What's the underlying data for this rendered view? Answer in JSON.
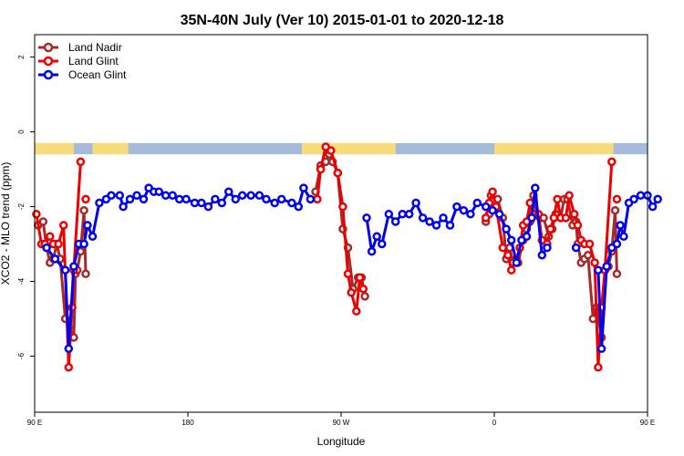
{
  "chart_data": {
    "type": "line",
    "title": "35N-40N July (Ver 10)   2015-01-01 to 2020-12-18",
    "xlabel": "Longitude",
    "ylabel": "XCO2 - MLO trend (ppm)",
    "xlim": [
      90,
      450
    ],
    "ylim": [
      -7.5,
      2.6
    ],
    "x_ticks": [
      {
        "value": 90,
        "label": "90 E"
      },
      {
        "value": 180,
        "label": "180"
      },
      {
        "value": 270,
        "label": "90 W"
      },
      {
        "value": 360,
        "label": "0"
      },
      {
        "value": 450,
        "label": "90 E"
      },
      {
        "value": 540,
        "label": "180"
      }
    ],
    "y_ticks": [
      {
        "value": -6,
        "label": "-6"
      },
      {
        "value": -4,
        "label": "-4"
      },
      {
        "value": -2,
        "label": "-2"
      },
      {
        "value": 0,
        "label": "0"
      },
      {
        "value": 2,
        "label": "2"
      }
    ],
    "grid": false,
    "legend_position": "top-left",
    "land_ocean_strip": {
      "y_range": [
        -0.6,
        -0.3
      ],
      "land_color": "#f9dc7a",
      "ocean_color": "#a4bcd9",
      "land_ranges": [
        [
          90,
          113
        ],
        [
          124,
          145
        ],
        [
          247,
          302
        ],
        [
          360,
          430
        ],
        [
          450,
          473
        ],
        [
          484,
          505
        ]
      ]
    },
    "series": [
      {
        "name": "Land Nadir",
        "color": "#a52a2a",
        "segments": [
          [
            [
              92,
              -2.5
            ],
            [
              95,
              -2.4
            ],
            [
              97,
              -3.1
            ],
            [
              99,
              -3.5
            ],
            [
              101,
              -3.4
            ],
            [
              103,
              -3.0
            ],
            [
              105,
              -3.4
            ],
            [
              108,
              -5.0
            ],
            [
              111,
              -5.3
            ],
            [
              113,
              -5.5
            ],
            [
              114,
              -3.8
            ],
            [
              115,
              -3.7
            ],
            [
              117,
              -3.2
            ],
            [
              119,
              -2.1
            ],
            [
              120,
              -3.8
            ]
          ],
          [
            [
              255,
              -1.6
            ],
            [
              258,
              -0.9
            ],
            [
              261,
              -0.8
            ],
            [
              263,
              -0.6
            ],
            [
              265,
              -0.8
            ],
            [
              268,
              -1.1
            ],
            [
              271,
              -2.6
            ],
            [
              274,
              -3.1
            ],
            [
              277,
              -4.2
            ],
            [
              280,
              -3.9
            ],
            [
              282,
              -3.9
            ],
            [
              284,
              -4.4
            ]
          ],
          [
            [
              355,
              -2.4
            ],
            [
              357,
              -2.2
            ],
            [
              358,
              -1.7
            ],
            [
              362,
              -1.8
            ],
            [
              365,
              -2.3
            ],
            [
              367,
              -3.4
            ],
            [
              369,
              -3.1
            ],
            [
              371,
              -3.5
            ],
            [
              374,
              -3.5
            ],
            [
              377,
              -2.9
            ],
            [
              379,
              -2.6
            ],
            [
              381,
              -2.4
            ],
            [
              383,
              -1.7
            ],
            [
              385,
              -2.2
            ],
            [
              387,
              -2.3
            ],
            [
              389,
              -2.3
            ],
            [
              392,
              -2.8
            ],
            [
              394,
              -2.6
            ],
            [
              396,
              -2.2
            ],
            [
              399,
              -2.3
            ],
            [
              401,
              -1.8
            ],
            [
              403,
              -1.8
            ],
            [
              406,
              -2.5
            ],
            [
              408,
              -2.4
            ],
            [
              409,
              -3.0
            ],
            [
              411,
              -3.5
            ],
            [
              413,
              -3.4
            ],
            [
              415,
              -3.3
            ],
            [
              418,
              -5.0
            ],
            [
              420,
              -4.7
            ],
            [
              423,
              -5.5
            ],
            [
              425,
              -3.7
            ],
            [
              427,
              -3.6
            ],
            [
              429,
              -3.2
            ],
            [
              431,
              -2.1
            ],
            [
              432,
              -3.8
            ]
          ]
        ]
      },
      {
        "name": "Land Glint",
        "color": "#ee0000",
        "segments": [
          [
            [
              91,
              -2.2
            ],
            [
              94,
              -3.0
            ],
            [
              96,
              -3.0
            ],
            [
              99,
              -2.8
            ],
            [
              101,
              -3.0
            ],
            [
              104,
              -3.0
            ],
            [
              107,
              -2.5
            ],
            [
              110,
              -6.3
            ],
            [
              112,
              -4.7
            ],
            [
              113,
              -3.7
            ],
            [
              117,
              -0.8
            ]
          ],
          [
            [
              120,
              -1.8
            ]
          ],
          [
            [
              256,
              -1.8
            ],
            [
              258,
              -1.0
            ],
            [
              261,
              -0.4
            ],
            [
              264,
              -0.5
            ],
            [
              268,
              -1.1
            ],
            [
              271,
              -2.0
            ],
            [
              274,
              -3.8
            ],
            [
              276,
              -4.3
            ],
            [
              279,
              -4.8
            ],
            [
              281,
              -3.9
            ],
            [
              283,
              -4.2
            ]
          ],
          [
            [
              355,
              -2.3
            ],
            [
              357,
              -1.9
            ],
            [
              359,
              -1.6
            ],
            [
              361,
              -2.0
            ],
            [
              365,
              -3.1
            ],
            [
              368,
              -3.3
            ],
            [
              370,
              -3.7
            ],
            [
              373,
              -3.4
            ],
            [
              375,
              -3.1
            ],
            [
              377,
              -2.5
            ],
            [
              379,
              -2.4
            ],
            [
              381,
              -1.9
            ],
            [
              383,
              -2.2
            ],
            [
              386,
              -2.2
            ],
            [
              388,
              -2.9
            ],
            [
              391,
              -3.0
            ],
            [
              393,
              -2.6
            ],
            [
              395,
              -2.3
            ],
            [
              397,
              -1.8
            ],
            [
              399,
              -2.3
            ],
            [
              402,
              -2.3
            ],
            [
              404,
              -1.7
            ],
            [
              407,
              -2.2
            ],
            [
              409,
              -2.5
            ],
            [
              411,
              -2.9
            ],
            [
              413,
              -3.0
            ],
            [
              416,
              -3.0
            ],
            [
              419,
              -3.5
            ],
            [
              421,
              -6.3
            ],
            [
              423,
              -4.7
            ],
            [
              425,
              -3.7
            ],
            [
              429,
              -0.8
            ]
          ],
          [
            [
              432,
              -1.8
            ]
          ]
        ]
      },
      {
        "name": "Ocean Glint",
        "color": "#0000ee",
        "segments": [
          [
            [
              97,
              -3.1
            ],
            [
              102,
              -3.4
            ],
            [
              108,
              -3.7
            ],
            [
              110,
              -5.8
            ],
            [
              113,
              -3.6
            ],
            [
              116,
              -3.0
            ],
            [
              119,
              -3.0
            ],
            [
              121,
              -2.5
            ],
            [
              124,
              -2.8
            ],
            [
              128,
              -1.9
            ],
            [
              132,
              -1.8
            ],
            [
              135,
              -1.7
            ],
            [
              140,
              -1.7
            ],
            [
              142,
              -2.0
            ],
            [
              146,
              -1.8
            ],
            [
              150,
              -1.7
            ],
            [
              154,
              -1.8
            ],
            [
              157,
              -1.5
            ],
            [
              160,
              -1.6
            ],
            [
              163,
              -1.6
            ],
            [
              167,
              -1.7
            ],
            [
              171,
              -1.7
            ],
            [
              175,
              -1.8
            ],
            [
              179,
              -1.8
            ],
            [
              184,
              -1.9
            ],
            [
              188,
              -1.9
            ],
            [
              192,
              -2.0
            ],
            [
              196,
              -1.8
            ],
            [
              200,
              -1.9
            ],
            [
              204,
              -1.6
            ],
            [
              208,
              -1.8
            ],
            [
              212,
              -1.7
            ],
            [
              217,
              -1.7
            ],
            [
              222,
              -1.7
            ],
            [
              226,
              -1.8
            ],
            [
              231,
              -1.9
            ],
            [
              235,
              -1.8
            ],
            [
              241,
              -1.9
            ],
            [
              245,
              -2.0
            ],
            [
              248,
              -1.5
            ],
            [
              252,
              -1.8
            ]
          ],
          [
            [
              285,
              -2.3
            ],
            [
              288,
              -3.2
            ],
            [
              291,
              -2.8
            ],
            [
              294,
              -3.0
            ],
            [
              298,
              -2.2
            ],
            [
              302,
              -2.4
            ],
            [
              306,
              -2.2
            ],
            [
              310,
              -2.2
            ],
            [
              314,
              -1.9
            ],
            [
              318,
              -2.3
            ],
            [
              322,
              -2.4
            ],
            [
              326,
              -2.5
            ],
            [
              330,
              -2.3
            ],
            [
              334,
              -2.5
            ],
            [
              338,
              -2.0
            ],
            [
              342,
              -2.1
            ],
            [
              346,
              -2.2
            ],
            [
              350,
              -1.9
            ],
            [
              355,
              -2.0
            ],
            [
              359,
              -2.1
            ],
            [
              363,
              -2.2
            ],
            [
              367,
              -2.6
            ],
            [
              370,
              -2.9
            ],
            [
              373,
              -3.5
            ],
            [
              376,
              -2.9
            ],
            [
              379,
              -2.8
            ],
            [
              382,
              -2.3
            ],
            [
              384,
              -1.5
            ],
            [
              388,
              -3.3
            ],
            [
              391,
              -3.1
            ]
          ],
          [
            [
              408,
              -3.1
            ]
          ],
          [
            [
              421,
              -3.7
            ],
            [
              423,
              -5.8
            ],
            [
              426,
              -3.6
            ],
            [
              429,
              -3.1
            ],
            [
              432,
              -3.0
            ],
            [
              434,
              -2.5
            ],
            [
              436,
              -2.8
            ],
            [
              439,
              -1.9
            ],
            [
              442,
              -1.8
            ],
            [
              446,
              -1.7
            ],
            [
              450,
              -1.7
            ],
            [
              453,
              -2.0
            ],
            [
              456,
              -1.8
            ]
          ]
        ]
      }
    ]
  }
}
